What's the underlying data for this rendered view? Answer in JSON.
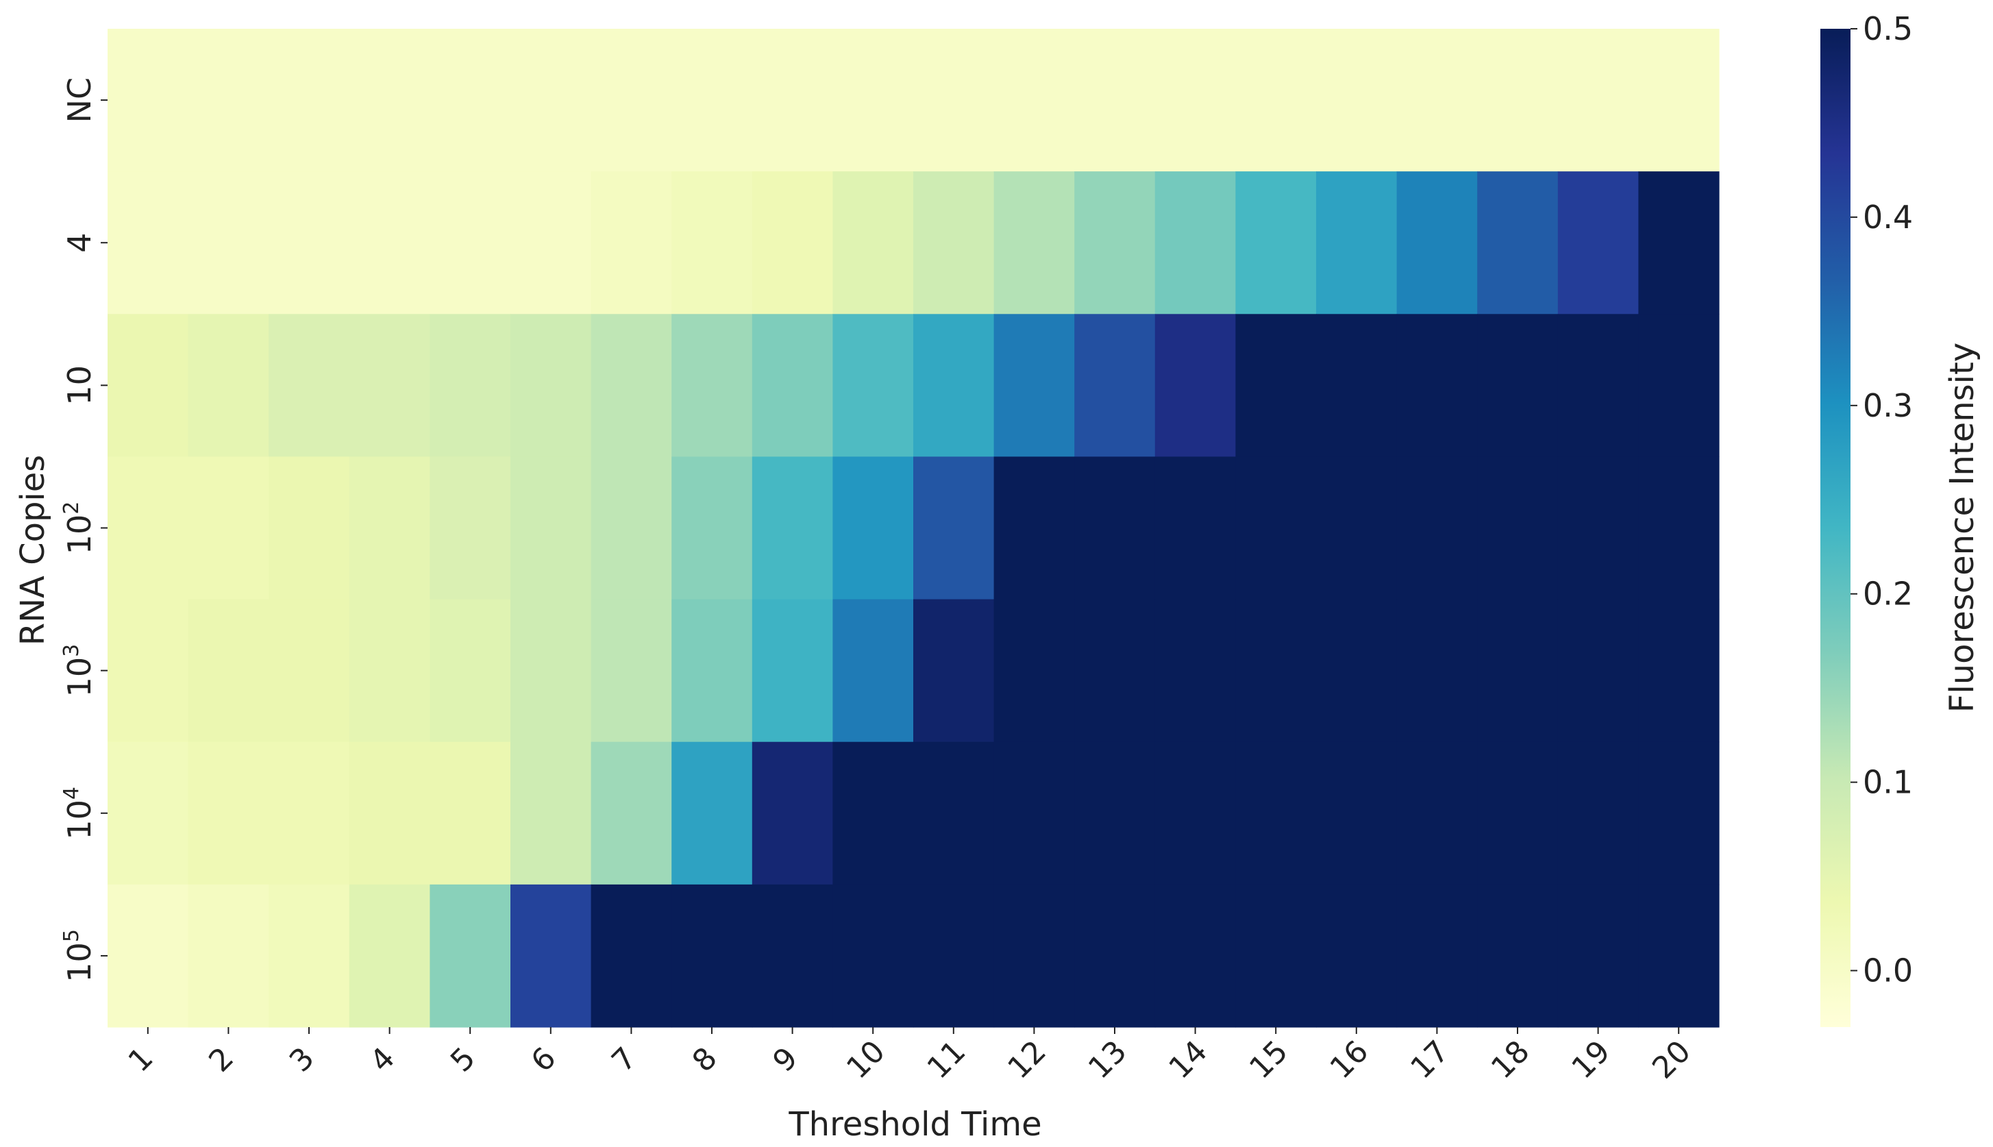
{
  "chart_data": {
    "type": "heatmap",
    "title": "",
    "xlabel": "Threshold Time",
    "ylabel": "RNA Copies",
    "x": [
      "1",
      "2",
      "3",
      "4",
      "5",
      "6",
      "7",
      "8",
      "9",
      "10",
      "11",
      "12",
      "13",
      "14",
      "15",
      "16",
      "17",
      "18",
      "19",
      "20"
    ],
    "rows": [
      {
        "label": "NC",
        "base": "NC",
        "sup": "",
        "values": [
          0.0,
          0.0,
          0.0,
          0.0,
          0.0,
          0.0,
          0.0,
          0.0,
          0.0,
          0.0,
          0.0,
          0.0,
          0.0,
          0.0,
          0.0,
          0.0,
          0.0,
          0.0,
          0.0,
          0.0
        ]
      },
      {
        "label": "4",
        "base": "4",
        "sup": "",
        "values": [
          0.0,
          0.0,
          0.0,
          0.0,
          0.0,
          0.0,
          0.01,
          0.02,
          0.03,
          0.06,
          0.09,
          0.12,
          0.15,
          0.18,
          0.23,
          0.27,
          0.32,
          0.37,
          0.42,
          0.5
        ]
      },
      {
        "label": "10",
        "base": "10",
        "sup": "",
        "values": [
          0.04,
          0.05,
          0.07,
          0.07,
          0.08,
          0.09,
          0.11,
          0.14,
          0.17,
          0.22,
          0.26,
          0.33,
          0.39,
          0.45,
          0.5,
          0.5,
          0.5,
          0.5,
          0.5,
          0.5
        ]
      },
      {
        "label": "10²",
        "base": "10",
        "sup": "2",
        "values": [
          0.03,
          0.03,
          0.04,
          0.05,
          0.07,
          0.09,
          0.11,
          0.16,
          0.23,
          0.29,
          0.38,
          0.5,
          0.5,
          0.5,
          0.5,
          0.5,
          0.5,
          0.5,
          0.5,
          0.5
        ]
      },
      {
        "label": "10³",
        "base": "10",
        "sup": "3",
        "values": [
          0.03,
          0.04,
          0.04,
          0.05,
          0.06,
          0.09,
          0.11,
          0.17,
          0.24,
          0.33,
          0.48,
          0.5,
          0.5,
          0.5,
          0.5,
          0.5,
          0.5,
          0.5,
          0.5,
          0.5
        ]
      },
      {
        "label": "10⁴",
        "base": "10",
        "sup": "4",
        "values": [
          0.02,
          0.03,
          0.03,
          0.04,
          0.04,
          0.09,
          0.14,
          0.27,
          0.47,
          0.5,
          0.5,
          0.5,
          0.5,
          0.5,
          0.5,
          0.5,
          0.5,
          0.5,
          0.5,
          0.5
        ]
      },
      {
        "label": "10⁵",
        "base": "10",
        "sup": "5",
        "values": [
          0.0,
          0.01,
          0.02,
          0.06,
          0.16,
          0.41,
          0.5,
          0.5,
          0.5,
          0.5,
          0.5,
          0.5,
          0.5,
          0.5,
          0.5,
          0.5,
          0.5,
          0.5,
          0.5,
          0.5
        ]
      }
    ],
    "colorbar": {
      "label": "Fluorescence Intensity",
      "vmin": -0.03,
      "vmax": 0.5,
      "ticks": [
        0.0,
        0.1,
        0.2,
        0.3,
        0.4,
        0.5
      ],
      "tick_labels": [
        "0.0",
        "0.1",
        "0.2",
        "0.3",
        "0.4",
        "0.5"
      ],
      "colormap": "YlGnBu",
      "stops": [
        "#ffffd9",
        "#edf8b1",
        "#c7e9b4",
        "#7fcdbb",
        "#41b6c4",
        "#1d91c0",
        "#225ea8",
        "#253494",
        "#081d58"
      ]
    },
    "grid": false,
    "legend": "colorbar-right"
  }
}
